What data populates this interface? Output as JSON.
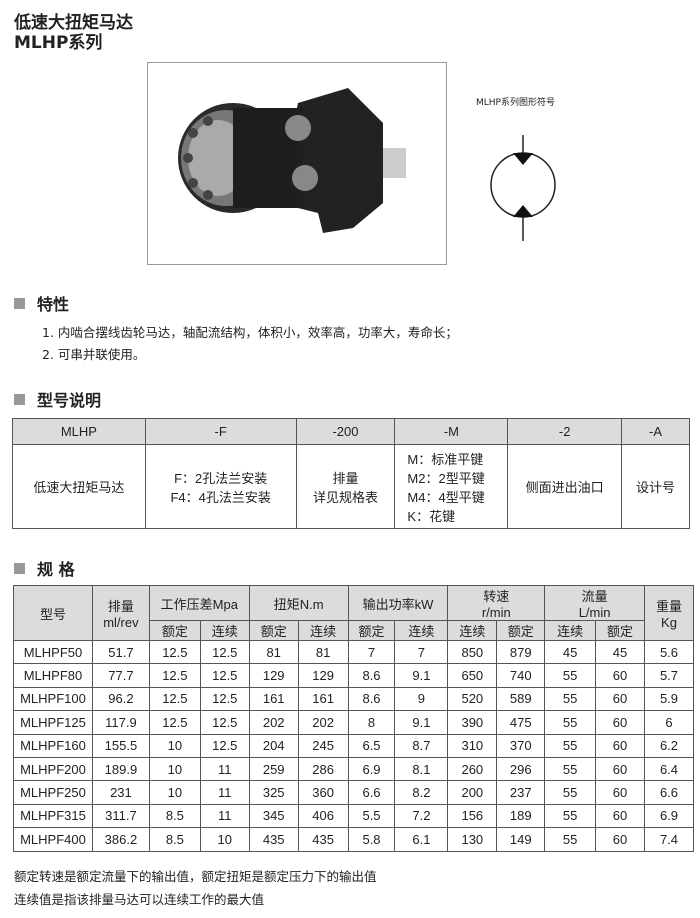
{
  "title": {
    "line1": "低速大扭矩马达",
    "line2": "MLHP系列"
  },
  "symbol_label": "MLHP系列图形符号",
  "features": {
    "heading": "特性",
    "items": [
      "1.  内啮合摆线齿轮马达，轴配流结构，体积小，效率高，功率大，寿命长；",
      "2.  可串并联使用。"
    ]
  },
  "model": {
    "heading": "型号说明",
    "header": [
      "MLHP",
      "-F",
      "-200",
      "-M",
      "-2",
      "-A"
    ],
    "body": [
      [
        "低速大扭矩马达"
      ],
      [
        "F：2孔法兰安装",
        "F4：4孔法兰安装"
      ],
      [
        "排量",
        "详见规格表"
      ],
      [
        "M：标准平键",
        "M2：2型平键",
        "M4：4型平键",
        "K：花键"
      ],
      [
        "侧面进出油口"
      ],
      [
        "设计号"
      ]
    ]
  },
  "spec": {
    "heading": "规 格",
    "groups": [
      "型号",
      "排量\nml/rev",
      "工作压差Mpa",
      "扭矩N.m",
      "输出功率kW",
      "转速\nr/min",
      "流量\nL/min",
      "重量\nKg"
    ],
    "sub": [
      "额定",
      "连续",
      "额定",
      "连续",
      "额定",
      "连续",
      "连续",
      "额定",
      "连续",
      "额定"
    ],
    "rows": [
      [
        "MLHPF50",
        "51.7",
        "12.5",
        "12.5",
        "81",
        "81",
        "7",
        "7",
        "850",
        "879",
        "45",
        "45",
        "5.6"
      ],
      [
        "MLHPF80",
        "77.7",
        "12.5",
        "12.5",
        "129",
        "129",
        "8.6",
        "9.1",
        "650",
        "740",
        "55",
        "60",
        "5.7"
      ],
      [
        "MLHPF100",
        "96.2",
        "12.5",
        "12.5",
        "161",
        "161",
        "8.6",
        "9",
        "520",
        "589",
        "55",
        "60",
        "5.9"
      ],
      [
        "MLHPF125",
        "117.9",
        "12.5",
        "12.5",
        "202",
        "202",
        "8",
        "9.1",
        "390",
        "475",
        "55",
        "60",
        "6"
      ],
      [
        "MLHPF160",
        "155.5",
        "10",
        "12.5",
        "204",
        "245",
        "6.5",
        "8.7",
        "310",
        "370",
        "55",
        "60",
        "6.2"
      ],
      [
        "MLHPF200",
        "189.9",
        "10",
        "11",
        "259",
        "286",
        "6.9",
        "8.1",
        "260",
        "296",
        "55",
        "60",
        "6.4"
      ],
      [
        "MLHPF250",
        "231",
        "10",
        "11",
        "325",
        "360",
        "6.6",
        "8.2",
        "200",
        "237",
        "55",
        "60",
        "6.6"
      ],
      [
        "MLHPF315",
        "311.7",
        "8.5",
        "11",
        "345",
        "406",
        "5.5",
        "7.2",
        "156",
        "189",
        "55",
        "60",
        "6.9"
      ],
      [
        "MLHPF400",
        "386.2",
        "8.5",
        "10",
        "435",
        "435",
        "5.8",
        "6.1",
        "130",
        "149",
        "55",
        "60",
        "7.4"
      ]
    ]
  },
  "notes": [
    "额定转速是额定流量下的输出值，额定扭矩是额定压力下的输出值",
    "连续值是指该排量马达可以连续工作的最大值"
  ]
}
